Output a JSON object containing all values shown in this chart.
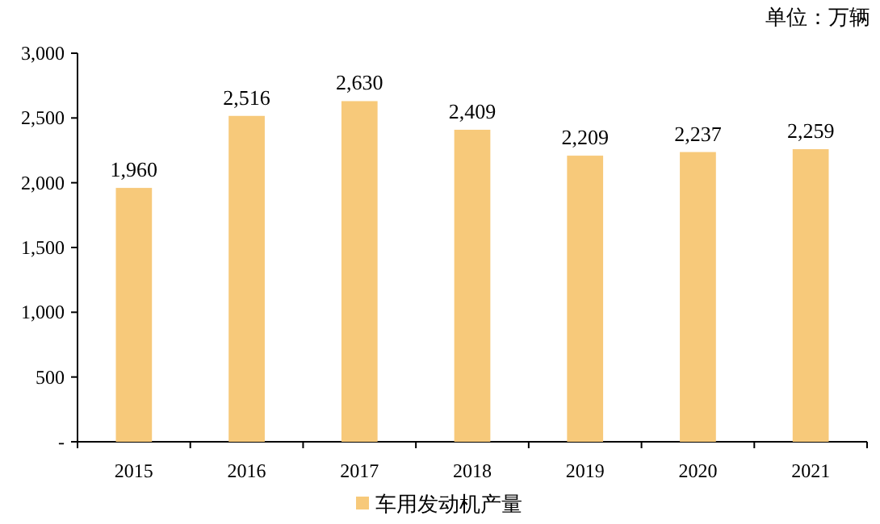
{
  "chart_data": {
    "type": "bar",
    "categories": [
      "2015",
      "2016",
      "2017",
      "2018",
      "2019",
      "2020",
      "2021"
    ],
    "series": [
      {
        "name": "车用发动机产量",
        "color": "#f7c97a",
        "values": [
          1960,
          2516,
          2630,
          2409,
          2209,
          2237,
          2259
        ]
      }
    ],
    "value_labels": [
      "1,960",
      "2,516",
      "2,630",
      "2,409",
      "2,209",
      "2,237",
      "2,259"
    ],
    "ylim": [
      0,
      3000
    ],
    "yticks": [
      {
        "value": 0,
        "label": "-"
      },
      500,
      {
        "value": 1000,
        "label": "1,000"
      },
      {
        "value": 1500,
        "label": "1,500"
      },
      {
        "value": 2000,
        "label": "2,000"
      },
      {
        "value": 2500,
        "label": "2,500"
      },
      {
        "value": 3000,
        "label": "3,000"
      }
    ],
    "legend": "bottom",
    "annotations": [
      "单位：万辆"
    ]
  }
}
